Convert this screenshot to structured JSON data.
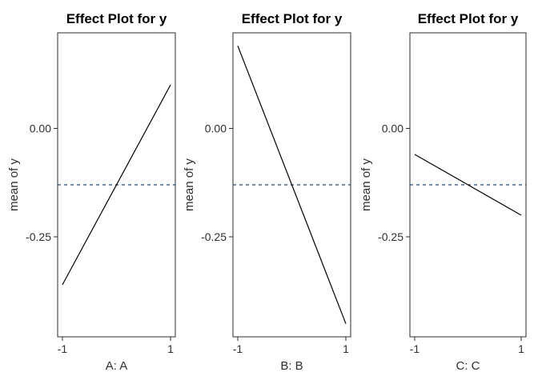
{
  "figure": {
    "background": "#ffffff",
    "description": "Three-panel effect plot (R effects package style)",
    "text_color": "#2e2e2e",
    "box_color": "#2b2b2b"
  },
  "chart_data": [
    {
      "type": "line",
      "title": "Effect Plot for y",
      "xlabel": "A: A",
      "ylabel": "mean of y",
      "x": [
        -1,
        1
      ],
      "y": [
        -0.36,
        0.1
      ],
      "xticks": [
        -1,
        1
      ],
      "xtick_labels": [
        "-1",
        "1"
      ],
      "yticks": [
        0,
        -0.25
      ],
      "ytick_labels": [
        "0.00",
        "-0.25"
      ],
      "ylim": [
        -0.48,
        0.22
      ],
      "line_color": "#000000",
      "reference_line": {
        "y": -0.13,
        "style": "dashed",
        "color": "#2F486B"
      },
      "grid": false,
      "legend": null
    },
    {
      "type": "line",
      "title": "Effect Plot for y",
      "xlabel": "B: B",
      "ylabel": "mean of y",
      "x": [
        -1,
        1
      ],
      "y": [
        0.19,
        -0.45
      ],
      "xticks": [
        -1,
        1
      ],
      "xtick_labels": [
        "-1",
        "1"
      ],
      "yticks": [
        0,
        -0.25
      ],
      "ytick_labels": [
        "0.00",
        "-0.25"
      ],
      "ylim": [
        -0.48,
        0.22
      ],
      "line_color": "#000000",
      "reference_line": {
        "y": -0.13,
        "style": "dashed",
        "color": "#2F486B"
      },
      "grid": false,
      "legend": null
    },
    {
      "type": "line",
      "title": "Effect Plot for y",
      "xlabel": "C: C",
      "ylabel": "mean of y",
      "x": [
        -1,
        1
      ],
      "y": [
        -0.06,
        -0.2
      ],
      "xticks": [
        -1,
        1
      ],
      "xtick_labels": [
        "-1",
        "1"
      ],
      "yticks": [
        0,
        -0.25
      ],
      "ytick_labels": [
        "0.00",
        "-0.25"
      ],
      "ylim": [
        -0.48,
        0.22
      ],
      "line_color": "#000000",
      "reference_line": {
        "y": -0.13,
        "style": "dashed",
        "color": "#2F486B"
      },
      "grid": false,
      "legend": null
    }
  ]
}
